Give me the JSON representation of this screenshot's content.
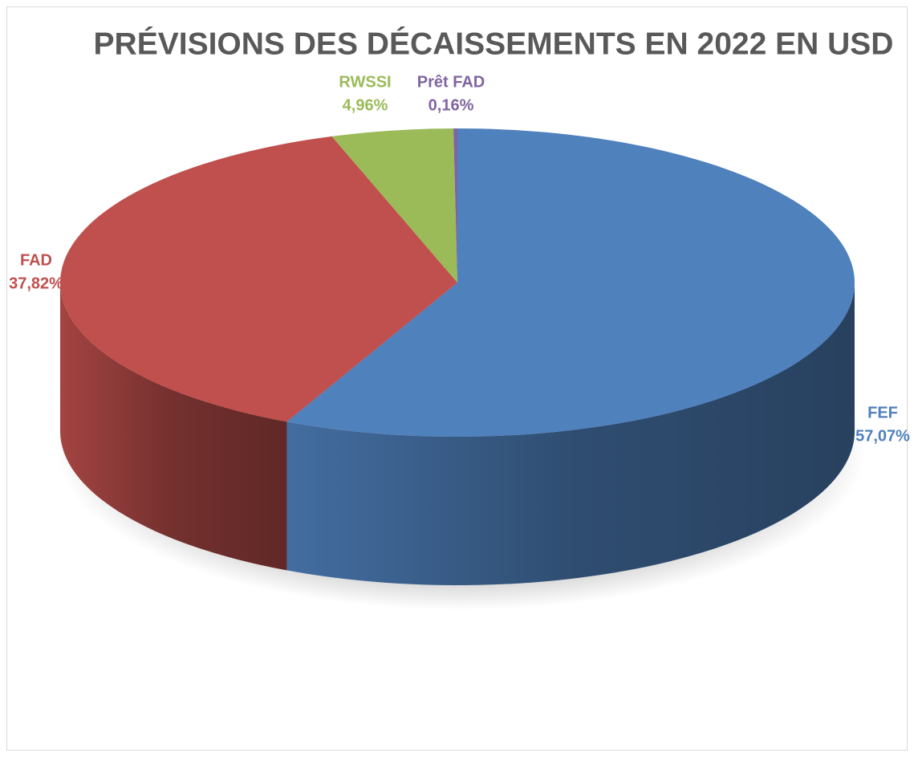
{
  "chart_data": {
    "type": "pie3d",
    "title": "PRÉVISIONS DES DÉCAISSEMENTS EN 2022 EN USD",
    "categories": [
      "FEF",
      "FAD",
      "RWSSI",
      "Prêt FAD"
    ],
    "values": [
      57.07,
      37.82,
      4.96,
      0.16
    ],
    "value_labels": [
      "57,07%",
      "37,82%",
      "4,96%",
      "0,16%"
    ],
    "colors": [
      "#4f81bd",
      "#c0504d",
      "#9bbb59",
      "#8064a2"
    ]
  }
}
